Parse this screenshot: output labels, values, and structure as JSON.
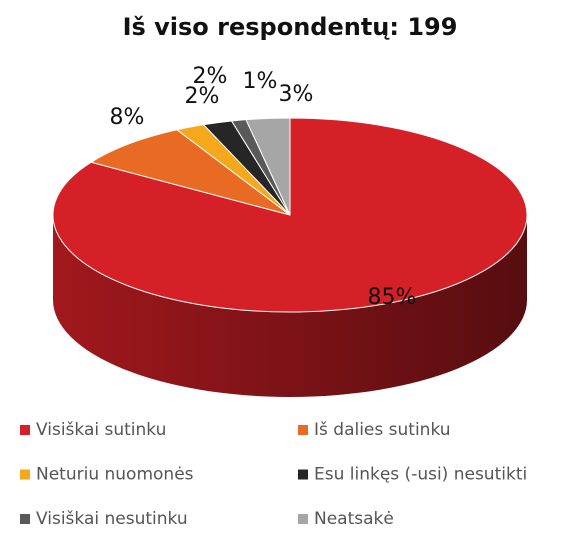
{
  "chart_data": {
    "type": "pie3d",
    "title": "Iš viso respondentų: 199",
    "categories": [
      "Visiškai sutinku",
      "Iš dalies sutinku",
      "Neturiu nuomonės",
      "Esu linkęs (-usi) nesutikti",
      "Visiškai nesutinku",
      "Neatsakė"
    ],
    "values": [
      85,
      8,
      2,
      2,
      1,
      3
    ],
    "value_labels": [
      "85%",
      "8%",
      "2%",
      "2%",
      "1%",
      "3%"
    ],
    "colors": [
      "#d62027",
      "#e96b23",
      "#f5a81c",
      "#262626",
      "#595959",
      "#a6a6a6"
    ],
    "legend": "bottom"
  }
}
